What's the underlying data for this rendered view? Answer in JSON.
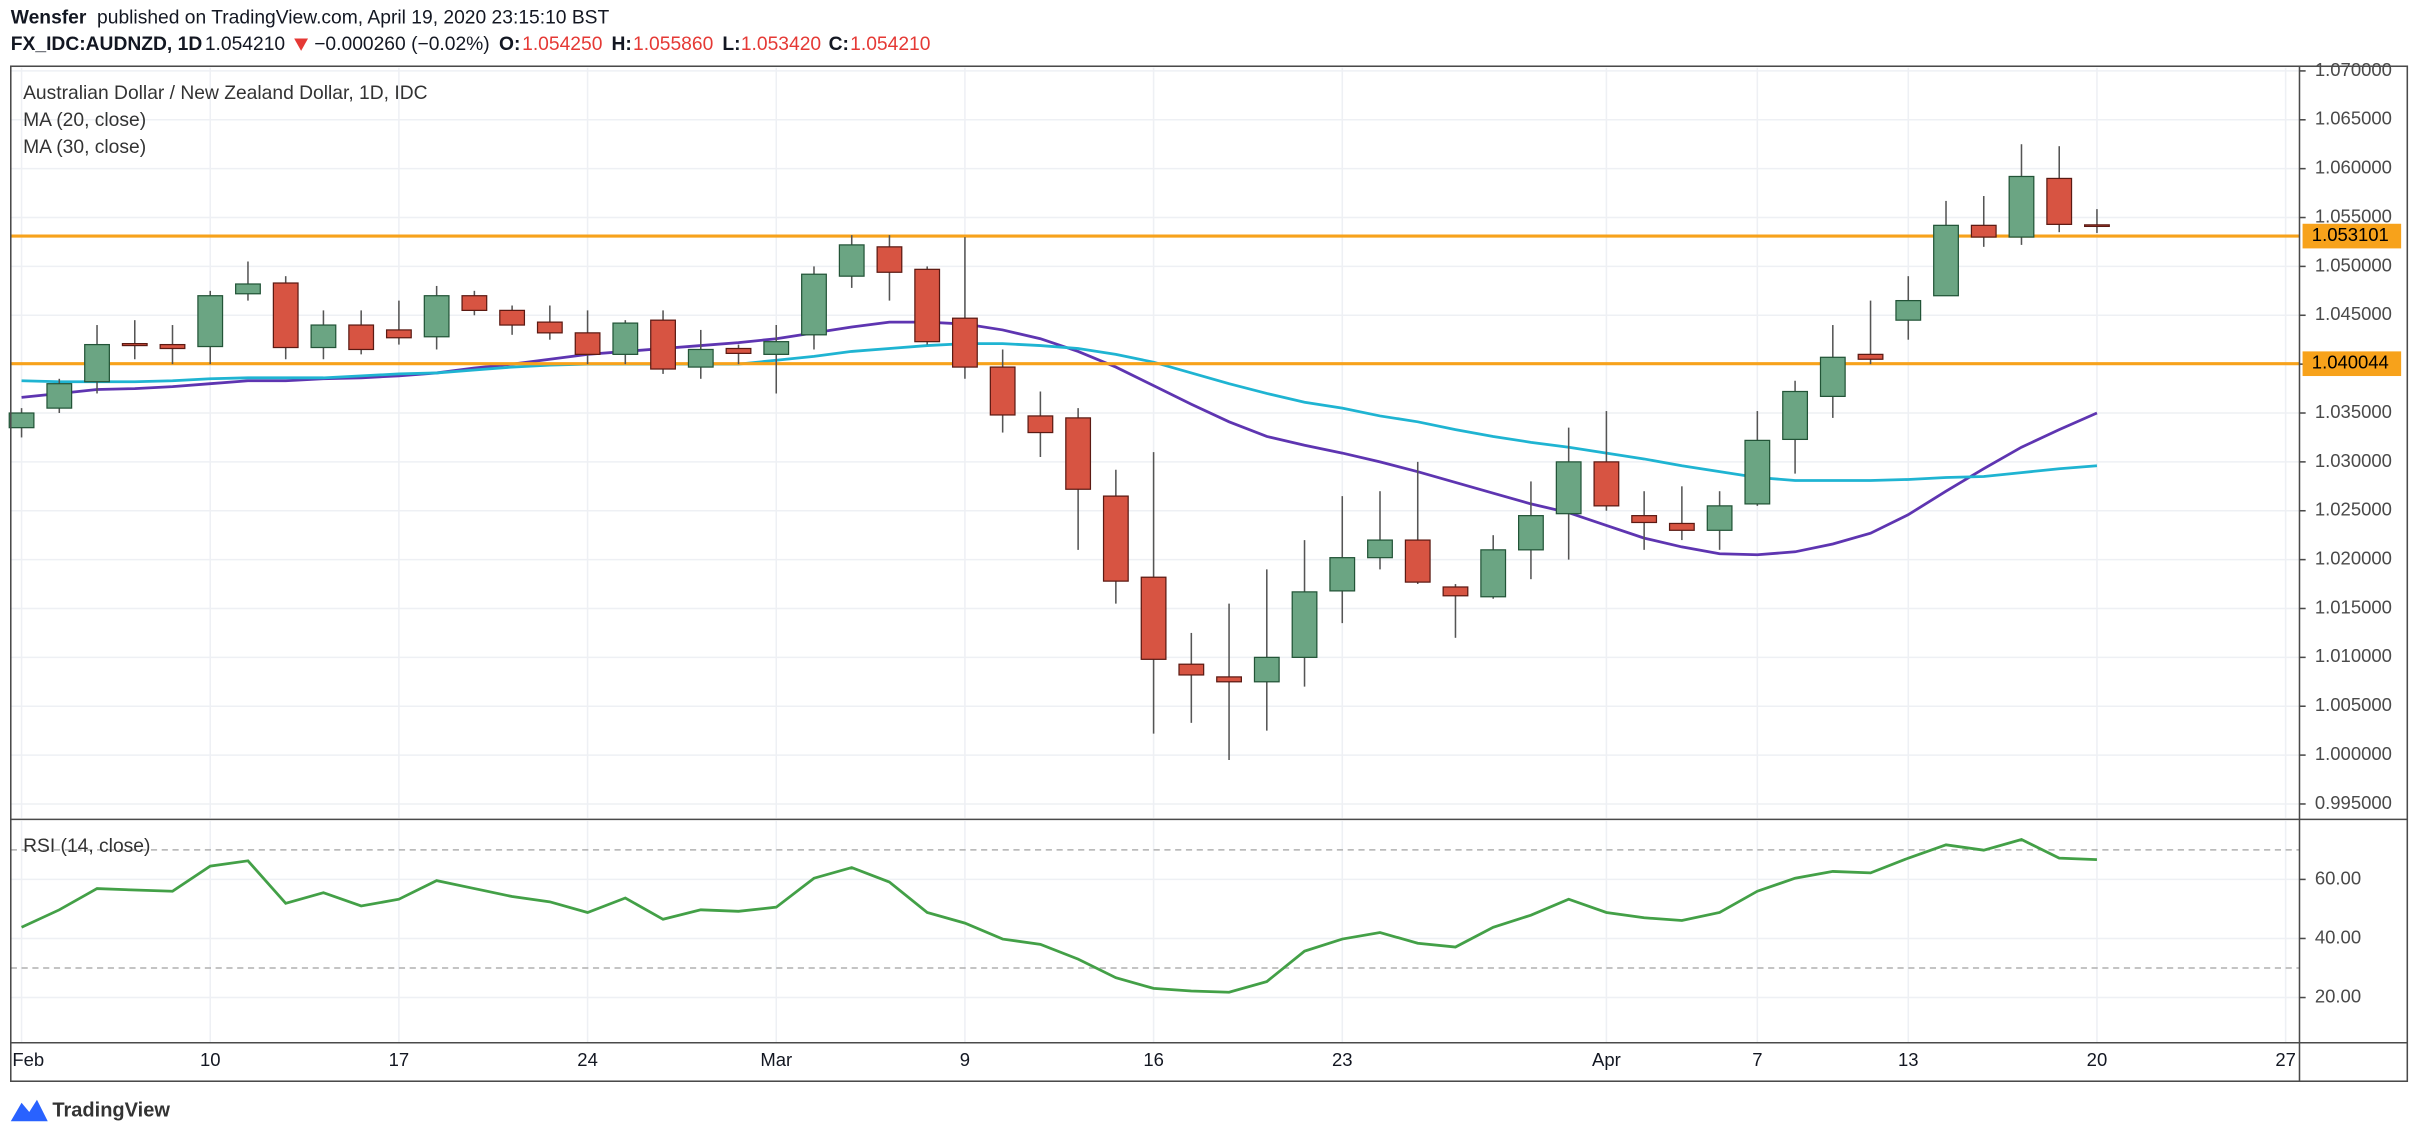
{
  "header": {
    "author": "Wensfer",
    "published": "published on TradingView.com, April 19, 2020 23:15:10 BST",
    "symbol": "FX_IDC:AUDNZD, 1D",
    "last": "1.054210",
    "change": "−0.000260 (−0.02%)",
    "ohlc": [
      {
        "label": "O:",
        "value": "1.054250"
      },
      {
        "label": "H:",
        "value": "1.055860"
      },
      {
        "label": "L:",
        "value": "1.053420"
      },
      {
        "label": "C:",
        "value": "1.054210"
      }
    ]
  },
  "footer": {
    "brand": "TradingView"
  },
  "chart_data": [
    {
      "type": "candlestick",
      "title": "Australian Dollar / New Zealand Dollar, 1D, IDC",
      "categories": [
        "Feb",
        null,
        null,
        null,
        null,
        "10",
        null,
        null,
        null,
        null,
        "17",
        null,
        null,
        null,
        null,
        "24",
        null,
        null,
        null,
        null,
        "Mar",
        null,
        null,
        null,
        null,
        "9",
        null,
        null,
        null,
        null,
        "16",
        null,
        null,
        null,
        null,
        "23",
        null,
        null,
        null,
        null,
        null,
        null,
        "Apr",
        null,
        null,
        null,
        "7",
        null,
        null,
        null,
        "13",
        null,
        null,
        null,
        null,
        "20",
        null,
        null,
        null,
        null,
        "27"
      ],
      "open": [
        1.0335,
        1.0355,
        1.0382,
        1.0421,
        1.042,
        1.0418,
        1.0472,
        1.0483,
        1.0417,
        1.044,
        1.0435,
        1.0428,
        1.047,
        1.0455,
        1.0443,
        1.0432,
        1.041,
        1.0445,
        1.0397,
        1.0416,
        1.041,
        1.043,
        1.049,
        1.052,
        1.0497,
        1.0447,
        1.0397,
        1.0347,
        1.0345,
        1.0265,
        1.0182,
        1.0093,
        1.008,
        1.0075,
        1.01,
        1.0168,
        1.0202,
        1.022,
        1.0172,
        1.0162,
        1.021,
        1.0247,
        1.03,
        1.0245,
        1.0237,
        1.023,
        1.0257,
        1.0323,
        1.0367,
        1.041,
        1.0445,
        1.047,
        1.0542,
        1.053,
        1.059,
        1.05425,
        null,
        null,
        null,
        null,
        null
      ],
      "high": [
        1.0355,
        1.0385,
        1.044,
        1.0445,
        1.044,
        1.0475,
        1.0505,
        1.049,
        1.0455,
        1.0455,
        1.0465,
        1.048,
        1.0475,
        1.046,
        1.046,
        1.0455,
        1.0445,
        1.0455,
        1.0435,
        1.042,
        1.044,
        1.05,
        1.0532,
        1.0532,
        1.05,
        1.053,
        1.0415,
        1.0372,
        1.0355,
        1.0292,
        1.031,
        1.0125,
        1.0155,
        1.019,
        1.022,
        1.0265,
        1.027,
        1.03,
        1.0175,
        1.0225,
        1.028,
        1.0335,
        1.0352,
        1.027,
        1.0275,
        1.027,
        1.0352,
        1.0383,
        1.044,
        1.0465,
        1.049,
        1.0567,
        1.0572,
        1.0625,
        1.0623,
        1.05586,
        null,
        null,
        null,
        null,
        null
      ],
      "low": [
        1.0325,
        1.035,
        1.037,
        1.0405,
        1.04,
        1.04,
        1.0465,
        1.0405,
        1.0405,
        1.041,
        1.042,
        1.0415,
        1.045,
        1.043,
        1.0425,
        1.04,
        1.04,
        1.039,
        1.0385,
        1.04,
        1.037,
        1.0415,
        1.0478,
        1.0465,
        1.042,
        1.0385,
        1.033,
        1.0305,
        1.021,
        1.0155,
        1.0022,
        1.0033,
        0.9995,
        1.0025,
        1.007,
        1.0135,
        1.019,
        1.0175,
        1.012,
        1.016,
        1.018,
        1.02,
        1.025,
        1.021,
        1.022,
        1.021,
        1.0255,
        1.0288,
        1.0345,
        1.04,
        1.0425,
        1.047,
        1.052,
        1.0522,
        1.0535,
        1.05342,
        null,
        null,
        null,
        null,
        null
      ],
      "close": [
        1.035,
        1.038,
        1.042,
        1.0419,
        1.0416,
        1.047,
        1.0482,
        1.0417,
        1.044,
        1.0415,
        1.0427,
        1.047,
        1.0455,
        1.044,
        1.0432,
        1.041,
        1.0442,
        1.0395,
        1.0415,
        1.0411,
        1.0423,
        1.0492,
        1.0522,
        1.0494,
        1.0423,
        1.0397,
        1.0348,
        1.033,
        1.0272,
        1.0178,
        1.0098,
        1.0082,
        1.0075,
        1.01,
        1.0167,
        1.0202,
        1.022,
        1.0177,
        1.0163,
        1.021,
        1.0245,
        1.03,
        1.0255,
        1.0238,
        1.023,
        1.0255,
        1.0322,
        1.0372,
        1.0407,
        1.0405,
        1.0465,
        1.0542,
        1.053,
        1.0592,
        1.0543,
        1.05421,
        null,
        null,
        null,
        null,
        null
      ],
      "up_color": "#6ba583",
      "down_color": "#d75442",
      "series": [
        {
          "name": "MA (20, close)",
          "color": "#5e35b1",
          "values": [
            1.0366,
            1.037,
            1.0374,
            1.0375,
            1.0377,
            1.038,
            1.0383,
            1.0383,
            1.0385,
            1.0386,
            1.0388,
            1.0391,
            1.0396,
            1.04,
            1.0405,
            1.041,
            1.0413,
            1.0416,
            1.0419,
            1.0422,
            1.0426,
            1.0432,
            1.0438,
            1.0443,
            1.0443,
            1.0441,
            1.0435,
            1.0426,
            1.0413,
            1.0397,
            1.0378,
            1.0359,
            1.0341,
            1.0326,
            1.0317,
            1.0309,
            1.03,
            1.029,
            1.0279,
            1.0268,
            1.0257,
            1.0248,
            1.0235,
            1.0222,
            1.0213,
            1.0206,
            1.0205,
            1.0208,
            1.0216,
            1.0227,
            1.0246,
            1.027,
            1.0293,
            1.0315,
            1.0333,
            1.035,
            null,
            null,
            null,
            null,
            null
          ]
        },
        {
          "name": "MA (30, close)",
          "color": "#1fb4d2",
          "values": [
            1.0383,
            1.0382,
            1.0382,
            1.0382,
            1.0383,
            1.0385,
            1.0386,
            1.0386,
            1.0386,
            1.0388,
            1.039,
            1.0391,
            1.0394,
            1.0397,
            1.0399,
            1.04,
            1.04,
            1.04,
            1.04,
            1.04,
            1.0404,
            1.0408,
            1.0413,
            1.0416,
            1.0419,
            1.0421,
            1.0421,
            1.0419,
            1.0416,
            1.041,
            1.0402,
            1.0391,
            1.038,
            1.037,
            1.0361,
            1.0355,
            1.0347,
            1.0341,
            1.0333,
            1.0326,
            1.032,
            1.0315,
            1.0309,
            1.0303,
            1.0296,
            1.029,
            1.0284,
            1.0281,
            1.0281,
            1.0281,
            1.0282,
            1.0284,
            1.0285,
            1.0289,
            1.0293,
            1.0296,
            null,
            null,
            null,
            null,
            null
          ]
        }
      ],
      "levels": [
        {
          "value": 1.053101,
          "color": "#f7a21b"
        },
        {
          "value": 1.040044,
          "color": "#f7a21b"
        }
      ],
      "ylim": [
        0.99358,
        1.07032
      ],
      "yticks": [
        {
          "value": 0.995,
          "label": "0.995000"
        },
        {
          "value": 1.0,
          "label": "1.000000"
        },
        {
          "value": 1.005,
          "label": "1.005000"
        },
        {
          "value": 1.01,
          "label": "1.010000"
        },
        {
          "value": 1.015,
          "label": "1.015000"
        },
        {
          "value": 1.02,
          "label": "1.020000"
        },
        {
          "value": 1.025,
          "label": "1.025000"
        },
        {
          "value": 1.03,
          "label": "1.030000"
        },
        {
          "value": 1.035,
          "label": "1.035000"
        },
        {
          "value": 1.04,
          "label": "1.040000"
        },
        {
          "value": 1.045,
          "label": "1.045000"
        },
        {
          "value": 1.05,
          "label": "1.050000"
        },
        {
          "value": 1.055,
          "label": "1.055000"
        },
        {
          "value": 1.06,
          "label": "1.060000"
        },
        {
          "value": 1.065,
          "label": "1.065000"
        },
        {
          "value": 1.07,
          "label": "1.070000"
        }
      ],
      "grid": true
    },
    {
      "type": "line",
      "title": "RSI (14, close)",
      "color": "#43a047",
      "values": [
        43.8,
        49.7,
        56.9,
        56.4,
        56.0,
        64.5,
        66.3,
        51.9,
        55.5,
        51.0,
        53.3,
        59.6,
        56.9,
        54.2,
        52.4,
        48.8,
        53.7,
        46.5,
        49.7,
        49.2,
        50.6,
        60.4,
        64.0,
        59.1,
        48.8,
        45.2,
        39.8,
        38.0,
        33.0,
        26.7,
        23.1,
        22.2,
        21.8,
        25.4,
        35.7,
        39.8,
        42.0,
        38.4,
        37.1,
        43.8,
        47.9,
        53.3,
        48.8,
        47.0,
        46.1,
        48.8,
        56.0,
        60.4,
        62.7,
        62.2,
        67.2,
        71.7,
        69.9,
        73.5,
        67.2,
        66.7,
        null,
        null,
        null,
        null,
        null
      ],
      "bands": [
        30,
        70
      ],
      "ylim": [
        4.7,
        79.8
      ],
      "yticks": [
        {
          "value": 20,
          "label": "20.00"
        },
        {
          "value": 40,
          "label": "40.00"
        },
        {
          "value": 60,
          "label": "60.00"
        }
      ],
      "grid": true
    }
  ]
}
